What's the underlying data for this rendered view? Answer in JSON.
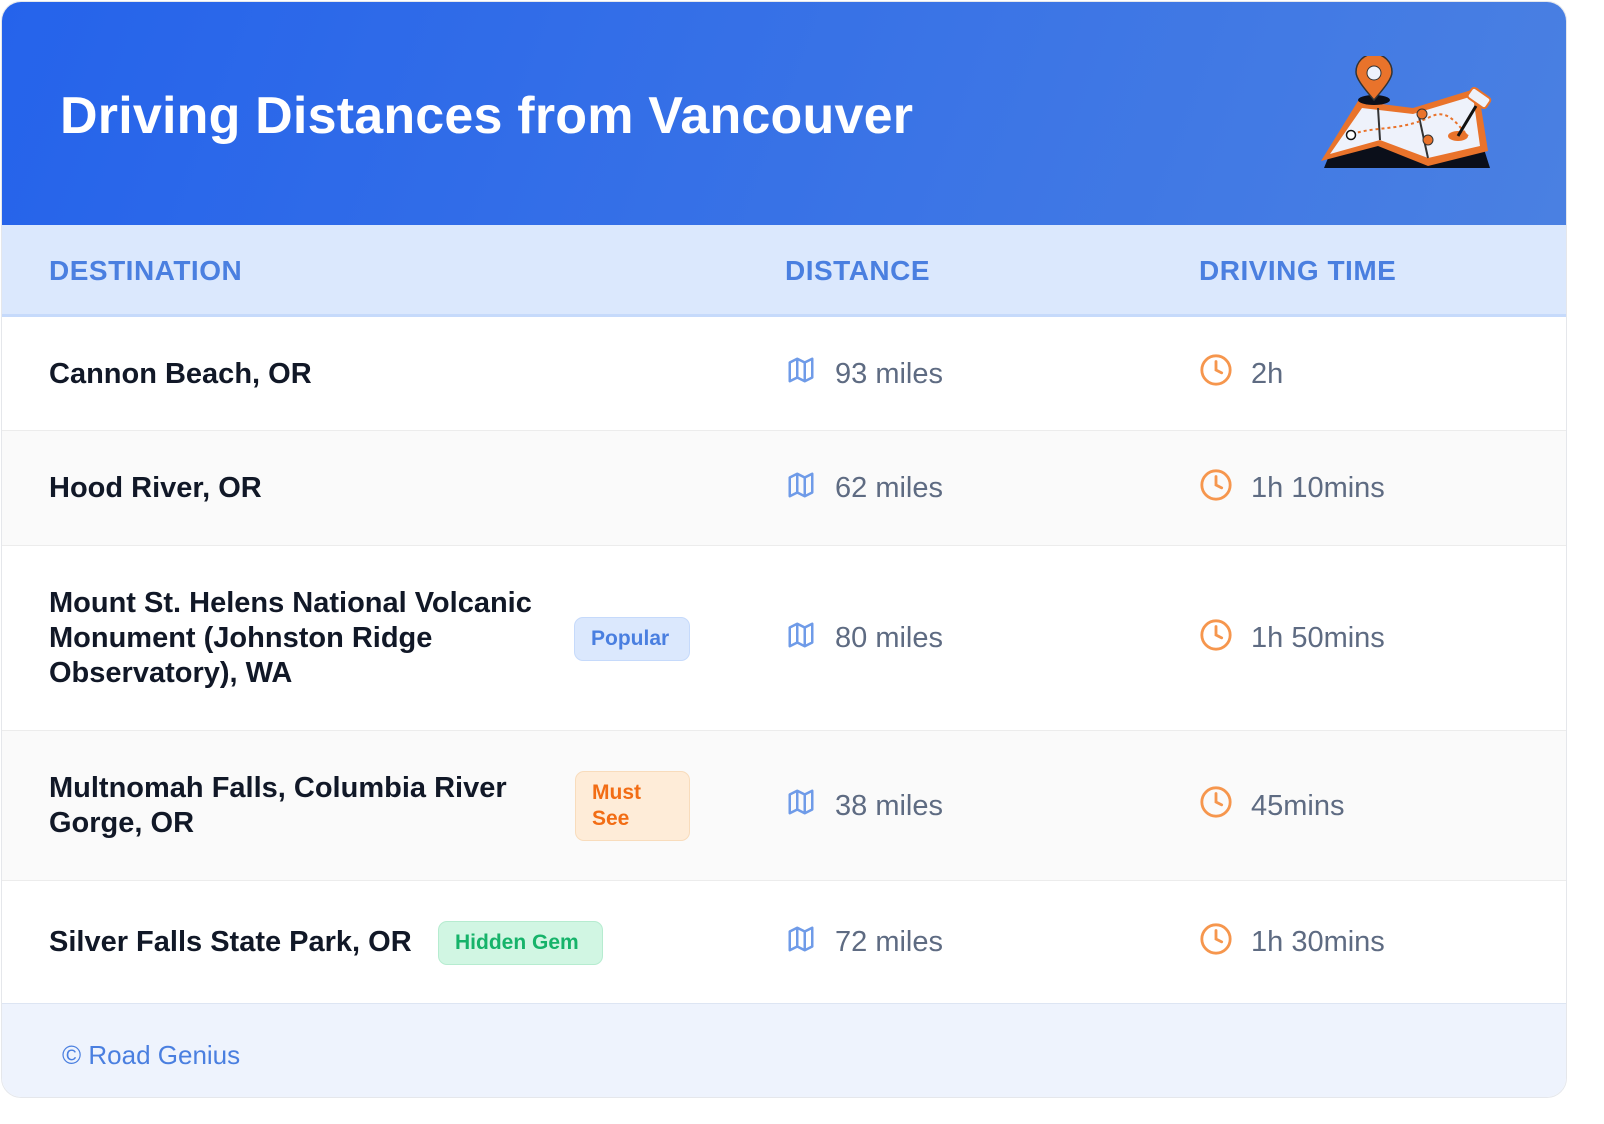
{
  "header": {
    "title": "Driving Distances from Vancouver",
    "illustration": "map-with-pins-illustration"
  },
  "table": {
    "columns": [
      "DESTINATION",
      "DISTANCE",
      "DRIVING TIME"
    ],
    "rows": [
      {
        "destination": [
          "Cannon Beach, OR"
        ],
        "badge": null,
        "distance": "93 miles",
        "time": "2h"
      },
      {
        "destination": [
          "Hood River, OR"
        ],
        "badge": null,
        "distance": "62 miles",
        "time": "1h 10mins"
      },
      {
        "destination": [
          "Mount St. Helens National Volcanic",
          "Monument (Johnston Ridge",
          "Observatory), WA"
        ],
        "badge": [
          "Popular"
        ],
        "distance": "80 miles",
        "time": "1h 50mins"
      },
      {
        "destination": [
          "Multnomah Falls, Columbia River",
          "Gorge, OR"
        ],
        "badge": [
          "Must",
          "See"
        ],
        "distance": "38 miles",
        "time": "45mins"
      },
      {
        "destination": [
          "Silver Falls State Park, OR"
        ],
        "badge": [
          "Hidden Gem"
        ],
        "distance": "72 miles",
        "time": "1h 30mins"
      }
    ],
    "icons": {
      "distance": "map-icon",
      "time": "clock-icon"
    }
  },
  "footer": {
    "credit": "© Road Genius"
  },
  "colors": {
    "primary": "#2563eb",
    "accent_orange": "#f26d15",
    "accent_green": "#16b36a"
  }
}
